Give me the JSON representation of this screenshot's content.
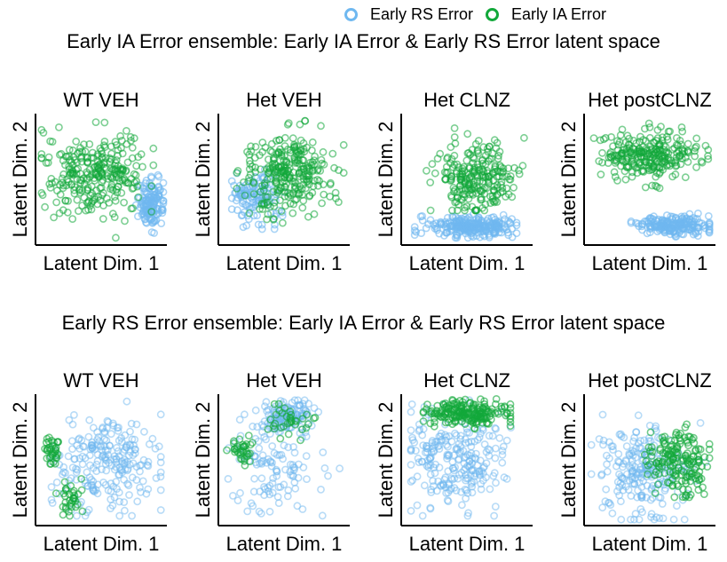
{
  "legend": {
    "entries": [
      {
        "label": "Early RS Error",
        "color": "#6fb8f0"
      },
      {
        "label": "Early IA Error",
        "color": "#12a83a"
      }
    ]
  },
  "rows": [
    {
      "title": "Early IA Error ensemble: Early IA Error & Early RS Error latent space"
    },
    {
      "title": "Early RS Error ensemble: Early IA Error & Early RS Error latent space"
    }
  ],
  "chart_data": [
    {
      "type": "scatter",
      "title": "WT VEH",
      "xlabel": "Latent Dim. 1",
      "ylabel": "Latent Dim. 2",
      "xlim": [
        0,
        1
      ],
      "ylim": [
        0,
        1
      ],
      "ticks": "none",
      "series": [
        {
          "name": "Early RS Error",
          "color": "#6fb8f0",
          "alpha": 0.6,
          "n": 140,
          "clusters": [
            {
              "cx": 0.9,
              "cy": 0.3,
              "sx": 0.05,
              "sy": 0.09
            }
          ],
          "range": {
            "x": [
              0.78,
              1.0
            ],
            "y": [
              0.05,
              0.65
            ]
          }
        },
        {
          "name": "Early IA Error",
          "color": "#12a83a",
          "alpha": 0.55,
          "n": 280,
          "clusters": [
            {
              "cx": 0.45,
              "cy": 0.55,
              "sx": 0.2,
              "sy": 0.17
            }
          ],
          "range": {
            "x": [
              0.02,
              0.92
            ],
            "y": [
              0.03,
              0.97
            ]
          }
        }
      ]
    },
    {
      "type": "scatter",
      "title": "Het VEH",
      "xlabel": "Latent Dim. 1",
      "ylabel": "Latent Dim. 2",
      "xlim": [
        0,
        1
      ],
      "ylim": [
        0,
        1
      ],
      "ticks": "none",
      "series": [
        {
          "name": "Early RS Error",
          "color": "#6fb8f0",
          "alpha": 0.6,
          "n": 120,
          "clusters": [
            {
              "cx": 0.25,
              "cy": 0.35,
              "sx": 0.1,
              "sy": 0.1
            }
          ],
          "range": {
            "x": [
              0.08,
              0.5
            ],
            "y": [
              0.1,
              0.58
            ]
          }
        },
        {
          "name": "Early IA Error",
          "color": "#12a83a",
          "alpha": 0.55,
          "n": 280,
          "clusters": [
            {
              "cx": 0.55,
              "cy": 0.55,
              "sx": 0.19,
              "sy": 0.15
            }
          ],
          "range": {
            "x": [
              0.12,
              0.98
            ],
            "y": [
              0.05,
              0.97
            ]
          }
        }
      ]
    },
    {
      "type": "scatter",
      "title": "Het CLNZ",
      "xlabel": "Latent Dim. 1",
      "ylabel": "Latent Dim. 2",
      "xlim": [
        0,
        1
      ],
      "ylim": [
        0,
        1
      ],
      "ticks": "none",
      "series": [
        {
          "name": "Early RS Error",
          "color": "#6fb8f0",
          "alpha": 0.6,
          "n": 260,
          "clusters": [
            {
              "cx": 0.52,
              "cy": 0.12,
              "sx": 0.17,
              "sy": 0.04
            }
          ],
          "range": {
            "x": [
              0.08,
              0.9
            ],
            "y": [
              0.03,
              0.25
            ]
          }
        },
        {
          "name": "Early IA Error",
          "color": "#12a83a",
          "alpha": 0.55,
          "n": 240,
          "clusters": [
            {
              "cx": 0.58,
              "cy": 0.52,
              "sx": 0.16,
              "sy": 0.14
            }
          ],
          "range": {
            "x": [
              0.15,
              0.96
            ],
            "y": [
              0.25,
              0.93
            ]
          }
        }
      ]
    },
    {
      "type": "scatter",
      "title": "Het postCLNZ",
      "xlabel": "Latent Dim. 1",
      "ylabel": "Latent Dim. 2",
      "xlim": [
        0,
        1
      ],
      "ylim": [
        0,
        1
      ],
      "ticks": "none",
      "series": [
        {
          "name": "Early RS Error",
          "color": "#6fb8f0",
          "alpha": 0.6,
          "n": 200,
          "clusters": [
            {
              "cx": 0.68,
              "cy": 0.13,
              "sx": 0.14,
              "sy": 0.04
            }
          ],
          "range": {
            "x": [
              0.35,
              0.98
            ],
            "y": [
              0.04,
              0.24
            ]
          }
        },
        {
          "name": "Early IA Error",
          "color": "#12a83a",
          "alpha": 0.55,
          "n": 260,
          "clusters": [
            {
              "cx": 0.52,
              "cy": 0.7,
              "sx": 0.19,
              "sy": 0.09
            }
          ],
          "range": {
            "x": [
              0.05,
              0.97
            ],
            "y": [
              0.4,
              0.95
            ]
          }
        }
      ]
    },
    {
      "type": "scatter",
      "title": "WT VEH",
      "xlabel": "Latent Dim. 1",
      "ylabel": "Latent Dim. 2",
      "xlim": [
        0,
        1
      ],
      "ylim": [
        0,
        1
      ],
      "ticks": "none",
      "series": [
        {
          "name": "Early RS Error",
          "color": "#6fb8f0",
          "alpha": 0.5,
          "n": 230,
          "clusters": [
            {
              "cx": 0.52,
              "cy": 0.48,
              "sx": 0.22,
              "sy": 0.2
            }
          ],
          "range": {
            "x": [
              0.1,
              0.98
            ],
            "y": [
              0.05,
              0.97
            ]
          }
        },
        {
          "name": "Early IA Error",
          "color": "#12a83a",
          "alpha": 0.6,
          "n": 70,
          "clusters": [
            {
              "cx": 0.1,
              "cy": 0.58,
              "sx": 0.04,
              "sy": 0.07
            },
            {
              "cx": 0.25,
              "cy": 0.18,
              "sx": 0.05,
              "sy": 0.07
            }
          ],
          "range": {
            "x": [
              0.02,
              0.4
            ],
            "y": [
              0.05,
              0.68
            ]
          }
        }
      ]
    },
    {
      "type": "scatter",
      "title": "Het VEH",
      "xlabel": "Latent Dim. 1",
      "ylabel": "Latent Dim. 2",
      "xlim": [
        0,
        1
      ],
      "ylim": [
        0,
        1
      ],
      "ticks": "none",
      "series": [
        {
          "name": "Early RS Error",
          "color": "#6fb8f0",
          "alpha": 0.5,
          "n": 240,
          "clusters": [
            {
              "cx": 0.4,
              "cy": 0.45,
              "sx": 0.18,
              "sy": 0.2
            },
            {
              "cx": 0.55,
              "cy": 0.85,
              "sx": 0.1,
              "sy": 0.06
            }
          ],
          "range": {
            "x": [
              0.05,
              0.98
            ],
            "y": [
              0.02,
              0.98
            ]
          }
        },
        {
          "name": "Early IA Error",
          "color": "#12a83a",
          "alpha": 0.6,
          "n": 70,
          "clusters": [
            {
              "cx": 0.15,
              "cy": 0.58,
              "sx": 0.06,
              "sy": 0.05
            },
            {
              "cx": 0.55,
              "cy": 0.82,
              "sx": 0.1,
              "sy": 0.06
            }
          ],
          "range": {
            "x": [
              0.03,
              0.75
            ],
            "y": [
              0.3,
              0.95
            ]
          }
        }
      ]
    },
    {
      "type": "scatter",
      "title": "Het CLNZ",
      "xlabel": "Latent Dim. 1",
      "ylabel": "Latent Dim. 2",
      "xlim": [
        0,
        1
      ],
      "ylim": [
        0,
        1
      ],
      "ticks": "none",
      "series": [
        {
          "name": "Early RS Error",
          "color": "#6fb8f0",
          "alpha": 0.5,
          "n": 240,
          "clusters": [
            {
              "cx": 0.4,
              "cy": 0.5,
              "sx": 0.2,
              "sy": 0.2
            }
          ],
          "range": {
            "x": [
              0.05,
              0.98
            ],
            "y": [
              0.05,
              0.98
            ]
          }
        },
        {
          "name": "Early IA Error",
          "color": "#12a83a",
          "alpha": 0.6,
          "n": 200,
          "clusters": [
            {
              "cx": 0.5,
              "cy": 0.87,
              "sx": 0.2,
              "sy": 0.05
            }
          ],
          "range": {
            "x": [
              0.15,
              0.85
            ],
            "y": [
              0.75,
              0.99
            ]
          }
        }
      ]
    },
    {
      "type": "scatter",
      "title": "Het postCLNZ",
      "xlabel": "Latent Dim. 1",
      "ylabel": "Latent Dim. 2",
      "xlim": [
        0,
        1
      ],
      "ylim": [
        0,
        1
      ],
      "ticks": "none",
      "series": [
        {
          "name": "Early RS Error",
          "color": "#6fb8f0",
          "alpha": 0.5,
          "n": 220,
          "clusters": [
            {
              "cx": 0.45,
              "cy": 0.4,
              "sx": 0.18,
              "sy": 0.18
            }
          ],
          "range": {
            "x": [
              0.03,
              0.95
            ],
            "y": [
              0.02,
              0.98
            ]
          }
        },
        {
          "name": "Early IA Error",
          "color": "#12a83a",
          "alpha": 0.6,
          "n": 170,
          "clusters": [
            {
              "cx": 0.72,
              "cy": 0.5,
              "sx": 0.12,
              "sy": 0.13
            }
          ],
          "range": {
            "x": [
              0.4,
              0.98
            ],
            "y": [
              0.2,
              0.85
            ]
          }
        }
      ]
    }
  ]
}
